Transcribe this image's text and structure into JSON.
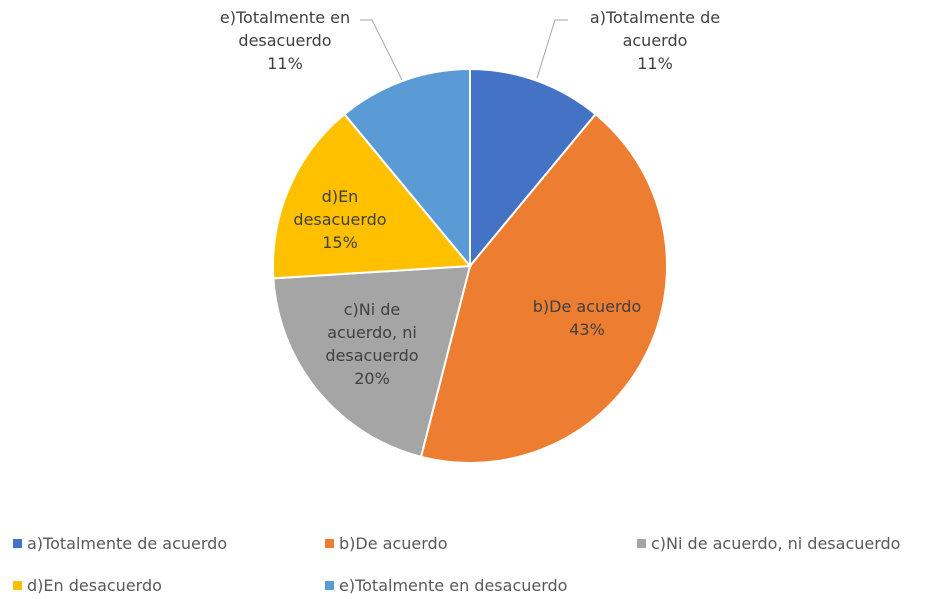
{
  "chart_data": {
    "type": "pie",
    "categories": [
      "a)Totalmente de acuerdo",
      "b)De acuerdo",
      "c)Ni de acuerdo, ni desacuerdo",
      "d)En desacuerdo",
      "e)Totalmente en desacuerdo"
    ],
    "values": [
      11,
      43,
      20,
      15,
      11
    ],
    "value_labels": [
      "11%",
      "43%",
      "20%",
      "15%",
      "11%"
    ],
    "colors": [
      "#4472c4",
      "#ed7d31",
      "#a5a5a5",
      "#ffc000",
      "#5b9bd5"
    ],
    "legend": "bottom"
  }
}
